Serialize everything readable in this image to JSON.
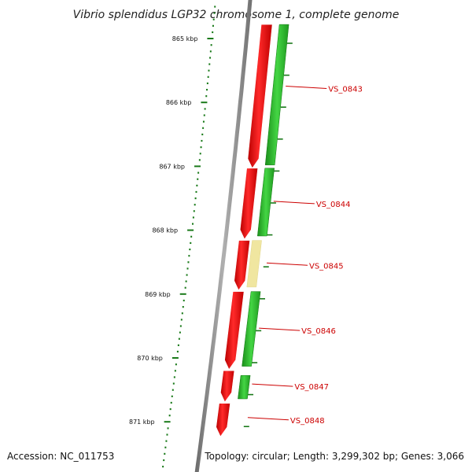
{
  "title": "Vibrio splendidus LGP32 chromosome 1, complete genome",
  "accession": "Accession: NC_011753",
  "summary": "Topology: circular; Length: 3,299,302 bp; Genes: 3,066",
  "ruler": {
    "labels": [
      "865 kbp",
      "866 kbp",
      "867 kbp",
      "868 kbp",
      "869 kbp",
      "870 kbp",
      "871 kbp"
    ]
  },
  "genes": [
    {
      "label": "VS_0843",
      "strand": "-",
      "start": 864.78,
      "end": 867.03
    },
    {
      "label": "VS_0844",
      "strand": "-",
      "start": 867.03,
      "end": 868.14
    },
    {
      "label": "VS_0845",
      "strand": "-",
      "start": 868.16,
      "end": 868.94
    },
    {
      "label": "VS_0846",
      "strand": "-",
      "start": 868.96,
      "end": 870.18
    },
    {
      "label": "VS_0847",
      "strand": "-",
      "start": 870.2,
      "end": 870.69
    },
    {
      "label": "VS_0848",
      "strand": "-",
      "start": 870.71,
      "end": 871.23
    }
  ],
  "colors": {
    "cds": "#ee0000",
    "gene": "#22bb22",
    "misc_feature": "#f0e6a0",
    "backbone": "#888888",
    "tick": "#1a7a1a",
    "label": "#cc0000"
  }
}
